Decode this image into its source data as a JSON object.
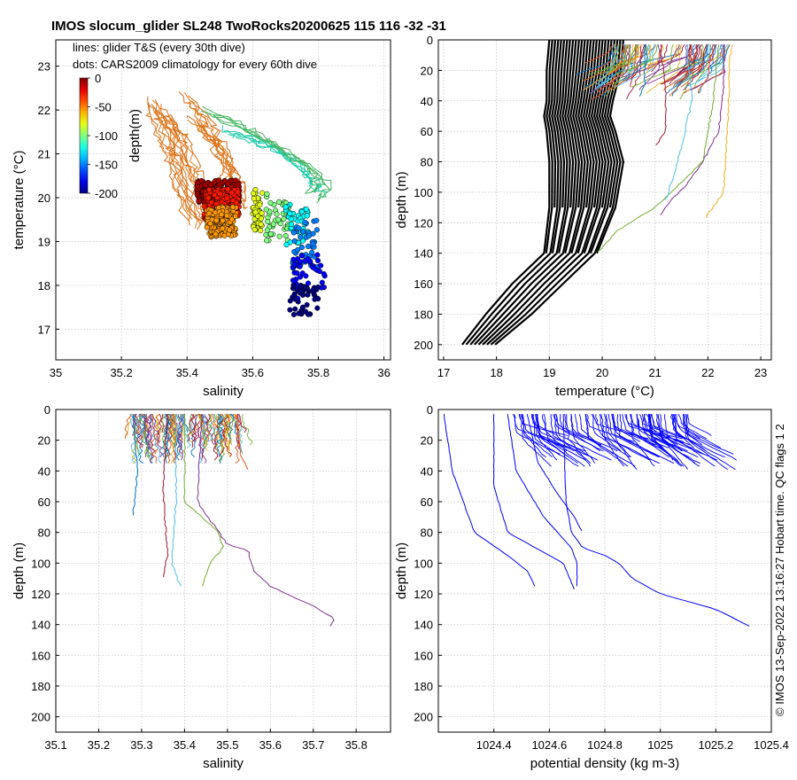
{
  "title": "IMOS slocum_glider SL248 TwoRocks20200625 115  116  -32  -31",
  "copyright": "© IMOS 13-Sep-2022 13:16:27 Hobart time. QC flags 1  2",
  "colors": {
    "axis": "#000000",
    "grid": "#bdbdbd",
    "profile_blue": "#0000ff",
    "climatology_line": "#000000"
  },
  "chart_data": [
    {
      "id": "ts",
      "type": "scatter",
      "xlabel": "salinity",
      "ylabel": "temperature (°C)",
      "xlim": [
        35,
        36.02
      ],
      "ylim": [
        16.3,
        23.6
      ],
      "xticks": [
        "35",
        "35.2",
        "35.4",
        "35.6",
        "35.8",
        "36"
      ],
      "yticks": [
        "17",
        "18",
        "19",
        "20",
        "21",
        "22",
        "23"
      ],
      "annotation": [
        "lines: glider T&S (every 30th dive)",
        "dots: CARS2009 climatology for every 60th dive"
      ],
      "colorbar": {
        "label": "depth(m)",
        "ticks": [
          "0",
          "-50",
          "-100",
          "-150",
          "-200"
        ],
        "range": [
          -200,
          0
        ]
      },
      "climatology_depth_columns": [
        {
          "depth": -8,
          "sal": [
            35.43,
            35.56
          ],
          "temp": [
            19.9,
            20.4
          ]
        },
        {
          "depth": -30,
          "sal": [
            35.45,
            35.56
          ],
          "temp": [
            19.5,
            20.2
          ]
        },
        {
          "depth": -55,
          "sal": [
            35.46,
            35.55
          ],
          "temp": [
            19.1,
            19.8
          ]
        },
        {
          "depth": -80,
          "sal": [
            35.6,
            35.63
          ],
          "temp": [
            19.2,
            20.2
          ]
        },
        {
          "depth": -100,
          "sal": [
            35.64,
            35.71
          ],
          "temp": [
            19.0,
            20.1
          ]
        },
        {
          "depth": -125,
          "sal": [
            35.7,
            35.77
          ],
          "temp": [
            18.9,
            19.9
          ]
        },
        {
          "depth": -150,
          "sal": [
            35.72,
            35.8
          ],
          "temp": [
            18.3,
            19.5
          ]
        },
        {
          "depth": -175,
          "sal": [
            35.72,
            35.82
          ],
          "temp": [
            17.7,
            18.7
          ]
        },
        {
          "depth": -200,
          "sal": [
            35.71,
            35.8
          ],
          "temp": [
            17.3,
            18.0
          ]
        }
      ],
      "glider_tracks": [
        {
          "sal": [
            35.28,
            35.34,
            35.36,
            35.4,
            35.45
          ],
          "temp": [
            22.3,
            21.5,
            20.8,
            20.0,
            19.3
          ]
        },
        {
          "sal": [
            35.31,
            35.36,
            35.39,
            35.42,
            35.47
          ],
          "temp": [
            22.0,
            21.6,
            20.9,
            20.3,
            19.6
          ]
        },
        {
          "sal": [
            35.27,
            35.3,
            35.33,
            35.36,
            35.4
          ],
          "temp": [
            22.2,
            21.6,
            21.0,
            20.2,
            19.4
          ]
        },
        {
          "sal": [
            35.38,
            35.43,
            35.47,
            35.5,
            35.52
          ],
          "temp": [
            22.4,
            21.9,
            21.4,
            20.8,
            20.1
          ]
        },
        {
          "sal": [
            35.4,
            35.46,
            35.5,
            35.53,
            35.54
          ],
          "temp": [
            21.9,
            21.4,
            20.9,
            20.4,
            19.9
          ]
        },
        {
          "sal": [
            35.5,
            35.6,
            35.68,
            35.75,
            35.78
          ],
          "temp": [
            21.6,
            21.4,
            21.1,
            20.6,
            20.2
          ]
        },
        {
          "sal": [
            35.44,
            35.58,
            35.69,
            35.8,
            35.75
          ],
          "temp": [
            22.1,
            21.6,
            21.1,
            20.5,
            20.1
          ]
        }
      ]
    },
    {
      "id": "temperature_profile",
      "type": "line",
      "xlabel": "temperature (°C)",
      "ylabel": "depth (m)",
      "xlim": [
        16.9,
        23.2
      ],
      "ylim": [
        0,
        210
      ],
      "xticks": [
        "17",
        "18",
        "19",
        "20",
        "21",
        "22",
        "23"
      ],
      "yticks": [
        "0",
        "20",
        "40",
        "60",
        "80",
        "100",
        "120",
        "140",
        "160",
        "180",
        "200"
      ],
      "climatology_band": {
        "depth": [
          0,
          20,
          40,
          50,
          60,
          80,
          110,
          140,
          160,
          180,
          200
        ],
        "temp_min": [
          19.0,
          18.95,
          18.95,
          18.9,
          18.95,
          19.0,
          19.0,
          18.9,
          18.3,
          17.8,
          17.35
        ],
        "temp_max": [
          20.4,
          20.35,
          20.2,
          20.15,
          20.25,
          20.4,
          20.25,
          19.9,
          19.3,
          18.7,
          18.0
        ]
      },
      "glider_profiles": [
        {
          "depth": [
            3,
            20,
            40,
            100,
            117
          ],
          "temp": [
            22.45,
            22.4,
            22.4,
            22.3,
            21.95
          ]
        },
        {
          "depth": [
            3,
            30,
            60,
            80,
            95,
            105,
            115
          ],
          "temp": [
            22.3,
            22.3,
            22.2,
            21.9,
            21.6,
            21.3,
            21.1
          ]
        },
        {
          "depth": [
            3,
            40,
            80,
            110,
            125,
            140
          ],
          "temp": [
            22.2,
            22.1,
            21.9,
            21.0,
            20.3,
            19.9
          ]
        },
        {
          "depth": [
            3,
            40,
            70,
            95,
            105
          ],
          "temp": [
            21.6,
            21.7,
            21.5,
            21.3,
            21.2
          ]
        },
        {
          "depth": [
            3,
            30,
            60,
            70
          ],
          "temp": [
            21.1,
            21.2,
            21.2,
            21.0
          ]
        },
        {
          "depth": [
            3,
            30,
            38
          ],
          "temp": [
            20.8,
            20.8,
            20.7
          ]
        },
        {
          "depth": [
            3,
            25,
            35
          ],
          "temp": [
            22.1,
            22.0,
            21.8
          ]
        }
      ]
    },
    {
      "id": "salinity_profile",
      "type": "line",
      "xlabel": "salinity",
      "ylabel": "depth (m)",
      "xlim": [
        35.1,
        35.88
      ],
      "ylim": [
        0,
        210
      ],
      "xticks": [
        "35.1",
        "35.2",
        "35.3",
        "35.4",
        "35.5",
        "35.6",
        "35.7",
        "35.8"
      ],
      "yticks": [
        "0",
        "20",
        "40",
        "60",
        "80",
        "100",
        "120",
        "140",
        "160",
        "180",
        "200"
      ],
      "profiles": [
        {
          "depth": [
            3,
            60,
            88,
            92,
            105,
            115,
            128,
            136,
            141
          ],
          "sal": [
            35.44,
            35.43,
            35.5,
            35.55,
            35.56,
            35.6,
            35.7,
            35.75,
            35.74
          ]
        },
        {
          "depth": [
            3,
            60,
            80,
            90,
            100,
            115
          ],
          "sal": [
            35.4,
            35.4,
            35.48,
            35.49,
            35.46,
            35.44
          ]
        },
        {
          "depth": [
            3,
            60,
            100,
            115
          ],
          "sal": [
            35.38,
            35.38,
            35.37,
            35.39
          ]
        },
        {
          "depth": [
            3,
            50,
            95,
            110
          ],
          "sal": [
            35.36,
            35.35,
            35.36,
            35.35
          ]
        },
        {
          "depth": [
            3,
            40,
            70
          ],
          "sal": [
            35.28,
            35.29,
            35.28
          ]
        },
        {
          "depth": [
            3,
            30,
            40
          ],
          "sal": [
            35.52,
            35.53,
            35.55
          ]
        }
      ]
    },
    {
      "id": "density_profile",
      "type": "line",
      "xlabel": "potential density (kg m-3)",
      "ylabel": "depth (m)",
      "xlim": [
        1024.2,
        1025.4
      ],
      "ylim": [
        0,
        210
      ],
      "xticks": [
        "1024.4",
        "1024.6",
        "1024.8",
        "1025",
        "1025.2",
        "1025.4"
      ],
      "yticks": [
        "0",
        "20",
        "40",
        "60",
        "80",
        "100",
        "120",
        "140",
        "160",
        "180",
        "200"
      ],
      "profiles": [
        {
          "depth": [
            3,
            60,
            80,
            90,
            95,
            100,
            110,
            120,
            130,
            140,
            141
          ],
          "rho": [
            1024.65,
            1024.66,
            1024.68,
            1024.72,
            1024.8,
            1024.85,
            1024.9,
            1025.0,
            1025.2,
            1025.31,
            1025.32
          ]
        },
        {
          "depth": [
            3,
            40,
            80,
            95,
            105,
            116
          ],
          "rho": [
            1024.22,
            1024.25,
            1024.33,
            1024.45,
            1024.52,
            1024.55
          ]
        },
        {
          "depth": [
            3,
            50,
            80,
            90,
            100,
            117
          ],
          "rho": [
            1024.4,
            1024.4,
            1024.45,
            1024.55,
            1024.65,
            1024.69
          ]
        },
        {
          "depth": [
            3,
            40,
            70,
            90,
            100,
            115
          ],
          "rho": [
            1024.45,
            1024.48,
            1024.58,
            1024.68,
            1024.7,
            1024.7
          ]
        },
        {
          "depth": [
            3,
            35,
            55,
            70,
            80
          ],
          "rho": [
            1024.52,
            1024.56,
            1024.63,
            1024.69,
            1024.72
          ]
        }
      ]
    }
  ]
}
